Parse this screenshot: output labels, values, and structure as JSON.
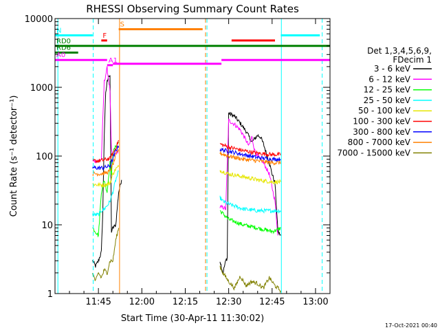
{
  "chart_data": {
    "type": "line",
    "title": "RHESSI Observing Summary Count Rates",
    "xlabel": "Start Time (30-Apr-11 11:30:02)",
    "ylabel": "Count Rate (s⁻¹ detector⁻¹)",
    "y_scale": "log",
    "ylim": [
      1,
      10000
    ],
    "xlim_minutes": [
      30,
      125
    ],
    "x_ticks": [
      {
        "label": "11:45",
        "min": 45
      },
      {
        "label": "12:00",
        "min": 60
      },
      {
        "label": "12:15",
        "min": 75
      },
      {
        "label": "12:30",
        "min": 90
      },
      {
        "label": "12:45",
        "min": 105
      },
      {
        "label": "13:00",
        "min": 120
      }
    ],
    "y_ticks": [
      {
        "label": "1",
        "value": 1
      },
      {
        "label": "10",
        "value": 10
      },
      {
        "label": "100",
        "value": 100
      },
      {
        "label": "1000",
        "value": 1000
      },
      {
        "label": "10000",
        "value": 10000
      }
    ],
    "legend_title": [
      "Det 1,3,4,5,6,9,",
      "FDecim 1"
    ],
    "legend_position": "right",
    "footer": "17-Oct-2021 00:40",
    "series": [
      {
        "name": "3 - 6 keV",
        "color": "#000000",
        "segments": [
          [
            [
              43,
              3
            ],
            [
              44,
              2.5
            ],
            [
              45,
              3
            ],
            [
              46,
              4
            ],
            [
              46.5,
              15
            ],
            [
              47,
              200
            ],
            [
              47.5,
              800
            ],
            [
              48,
              1200
            ],
            [
              48.5,
              1500
            ],
            [
              49,
              1400
            ],
            [
              49.5,
              8
            ],
            [
              50,
              9
            ],
            [
              51,
              10
            ],
            [
              52,
              30
            ],
            [
              53,
              45
            ]
          ],
          [
            [
              87,
              3
            ],
            [
              88,
              2
            ],
            [
              89,
              3
            ],
            [
              89.5,
              3.3
            ],
            [
              90,
              420
            ],
            [
              92,
              380
            ],
            [
              94,
              300
            ],
            [
              96,
              230
            ],
            [
              98,
              160
            ],
            [
              100,
              200
            ],
            [
              101,
              190
            ],
            [
              102,
              150
            ],
            [
              104,
              80
            ],
            [
              105,
              55
            ],
            [
              106,
              40
            ],
            [
              107,
              8
            ],
            [
              108,
              7
            ]
          ]
        ]
      },
      {
        "name": "6 - 12 keV",
        "color": "#ff00ff",
        "segments": [
          [
            [
              43,
              85
            ],
            [
              45,
              85
            ],
            [
              46,
              90
            ],
            [
              47,
              1200
            ],
            [
              48,
              1900
            ],
            [
              49,
              900
            ],
            [
              49.5,
              120
            ],
            [
              50,
              100
            ],
            [
              51,
              110
            ],
            [
              52,
              120
            ]
          ],
          [
            [
              87,
              18
            ],
            [
              88,
              18
            ],
            [
              89,
              17
            ],
            [
              90,
              330
            ],
            [
              92,
              290
            ],
            [
              94,
              240
            ],
            [
              96,
              170
            ],
            [
              97,
              140
            ],
            [
              98,
              190
            ],
            [
              99,
              120
            ],
            [
              100,
              100
            ],
            [
              102,
              80
            ],
            [
              104,
              55
            ],
            [
              105,
              35
            ],
            [
              106,
              22
            ],
            [
              107,
              7
            ]
          ]
        ]
      },
      {
        "name": "12 - 25 keV",
        "color": "#00ff00",
        "segments": [
          [
            [
              43,
              9
            ],
            [
              44,
              8
            ],
            [
              45,
              7
            ],
            [
              46,
              30
            ],
            [
              47,
              45
            ],
            [
              48,
              30
            ],
            [
              49,
              80
            ],
            [
              49.5,
              50
            ],
            [
              50,
              110
            ],
            [
              51,
              140
            ],
            [
              52,
              160
            ]
          ],
          [
            [
              87,
              16
            ],
            [
              90,
              12
            ],
            [
              95,
              10
            ],
            [
              100,
              9
            ],
            [
              105,
              8
            ],
            [
              107,
              8.5
            ],
            [
              108,
              9
            ]
          ]
        ]
      },
      {
        "name": "25 - 50 keV",
        "color": "#00ffff",
        "segments": [
          [
            [
              43,
              14
            ],
            [
              45,
              14
            ],
            [
              46,
              16
            ],
            [
              47,
              17
            ],
            [
              48,
              19
            ],
            [
              49,
              22
            ],
            [
              50,
              30
            ],
            [
              51,
              45
            ],
            [
              52,
              60
            ]
          ],
          [
            [
              87,
              25
            ],
            [
              88,
              22
            ],
            [
              90,
              20
            ],
            [
              95,
              17
            ],
            [
              100,
              16
            ],
            [
              105,
              16
            ],
            [
              108,
              16
            ]
          ]
        ]
      },
      {
        "name": "50 - 100 keV",
        "color": "#e6e600",
        "segments": [
          [
            [
              43,
              39
            ],
            [
              45,
              38
            ],
            [
              47,
              38
            ],
            [
              49,
              40
            ],
            [
              50,
              55
            ],
            [
              51,
              65
            ],
            [
              52,
              70
            ]
          ],
          [
            [
              87,
              62
            ],
            [
              90,
              55
            ],
            [
              95,
              50
            ],
            [
              100,
              45
            ],
            [
              105,
              42
            ],
            [
              108,
              42
            ]
          ]
        ]
      },
      {
        "name": "100 - 300 keV",
        "color": "#ff0000",
        "segments": [
          [
            [
              43,
              85
            ],
            [
              45,
              85
            ],
            [
              47,
              88
            ],
            [
              49,
              92
            ],
            [
              50,
              110
            ],
            [
              51,
              130
            ],
            [
              52,
              170
            ]
          ],
          [
            [
              87,
              150
            ],
            [
              90,
              135
            ],
            [
              95,
              120
            ],
            [
              100,
              110
            ],
            [
              105,
              105
            ],
            [
              108,
              105
            ]
          ]
        ]
      },
      {
        "name": "300 - 800 keV",
        "color": "#0000ff",
        "segments": [
          [
            [
              43,
              68
            ],
            [
              45,
              67
            ],
            [
              47,
              68
            ],
            [
              49,
              72
            ],
            [
              50,
              90
            ],
            [
              51,
              120
            ],
            [
              52,
              140
            ]
          ],
          [
            [
              87,
              125
            ],
            [
              90,
              118
            ],
            [
              95,
              105
            ],
            [
              100,
              95
            ],
            [
              105,
              90
            ],
            [
              108,
              90
            ]
          ]
        ]
      },
      {
        "name": "800 - 7000 keV",
        "color": "#ff8000",
        "segments": [
          [
            [
              43,
              56
            ],
            [
              45,
              55
            ],
            [
              47,
              56
            ],
            [
              49,
              60
            ],
            [
              50,
              75
            ],
            [
              51,
              100
            ],
            [
              52,
              125
            ]
          ],
          [
            [
              87,
              110
            ],
            [
              90,
              100
            ],
            [
              95,
              90
            ],
            [
              100,
              85
            ],
            [
              105,
              80
            ],
            [
              108,
              80
            ]
          ]
        ]
      },
      {
        "name": "7000 - 15000 keV",
        "color": "#808000",
        "segments": [
          [
            [
              43,
              2
            ],
            [
              44,
              1.5
            ],
            [
              45,
              2
            ],
            [
              46,
              1.7
            ],
            [
              47,
              2.2
            ],
            [
              48,
              2
            ],
            [
              49,
              3
            ],
            [
              50,
              3
            ],
            [
              51,
              6
            ],
            [
              52,
              9
            ]
          ],
          [
            [
              87,
              2.5
            ],
            [
              88,
              2
            ],
            [
              90,
              1.5
            ],
            [
              92,
              1.2
            ],
            [
              94,
              1.8
            ],
            [
              96,
              1.3
            ],
            [
              98,
              1.5
            ],
            [
              100,
              1.4
            ],
            [
              102,
              1.2
            ],
            [
              104,
              1.7
            ],
            [
              106,
              1.3
            ],
            [
              108,
              1.1
            ]
          ]
        ]
      }
    ],
    "flags": [
      {
        "label": "RD0",
        "color": "#008000",
        "label_color": "#008000",
        "y": 4000,
        "x_start": 30,
        "x_end": 125
      },
      {
        "label": "RD6",
        "color": "#008000",
        "label_color": "#008000",
        "y": 3200,
        "x_start": 30,
        "x_end": 38
      },
      {
        "label": "F",
        "color": "#ff0000",
        "label_color": "#ff0000",
        "y": 4800,
        "x_start": 46,
        "x_end": 48
      },
      {
        "label": "S",
        "color": "#ff8000",
        "label_color": "#ff8000",
        "y": 7000,
        "x_start": 52,
        "x_end": 81
      },
      {
        "label": "",
        "color": "#ff0000",
        "label_color": "#ff0000",
        "y": 4800,
        "x_start": 91,
        "x_end": 106
      },
      {
        "label": "N",
        "color": "#00ffff",
        "label_color": "#00ffff",
        "y": 5700,
        "x_start": 30,
        "x_end": 43
      },
      {
        "label": "",
        "color": "#00ffff",
        "label_color": "#00ffff",
        "y": 5700,
        "x_start": 108,
        "x_end": 121.5
      },
      {
        "label": "A1",
        "color": "#ff00ff",
        "label_color": "#ff00ff",
        "y": 2100,
        "x_start": 48,
        "x_end": 50
      },
      {
        "label": "A0",
        "color": "#ff00ff",
        "label_color": "#ff00ff",
        "y": 2500,
        "x_start": 30,
        "x_end": 48
      },
      {
        "label": "",
        "color": "#ff00ff",
        "label_color": "#ff00ff",
        "y": 2200,
        "x_start": 50,
        "x_end": 87.5
      },
      {
        "label": "",
        "color": "#ff00ff",
        "label_color": "#ff00ff",
        "y": 2500,
        "x_start": 87.5,
        "x_end": 125
      }
    ],
    "vlines": [
      {
        "x": 31,
        "color": "#00ffff",
        "style": "solid"
      },
      {
        "x": 43.2,
        "color": "#00ffff",
        "style": "dashed"
      },
      {
        "x": 52.3,
        "color": "#ff8000",
        "style": "solid"
      },
      {
        "x": 82,
        "color": "#ff8000",
        "style": "dashed"
      },
      {
        "x": 82.5,
        "color": "#00ffff",
        "style": "dashed"
      },
      {
        "x": 108.2,
        "color": "#00ffff",
        "style": "solid"
      },
      {
        "x": 122.3,
        "color": "#00ffff",
        "style": "dashed"
      }
    ]
  }
}
